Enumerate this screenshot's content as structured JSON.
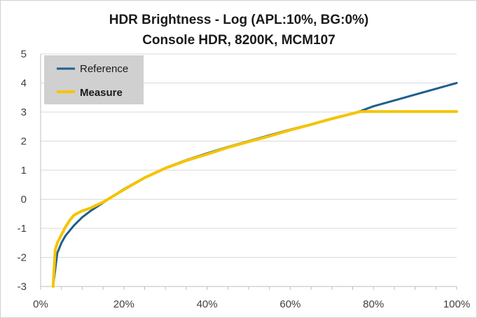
{
  "chart_data": {
    "type": "line",
    "title": [
      "HDR Brightness - Log (APL:10%,  BG:0%)",
      "Console HDR, 8200K, MCM107"
    ],
    "xlabel": "",
    "ylabel": "",
    "xlim": [
      0,
      100
    ],
    "ylim": [
      -3,
      5
    ],
    "x_ticks": [
      0,
      20,
      40,
      60,
      80,
      100
    ],
    "x_tick_labels": [
      "0%",
      "20%",
      "40%",
      "60%",
      "80%",
      "100%"
    ],
    "y_ticks": [
      -3,
      -2,
      -1,
      0,
      1,
      2,
      3,
      4,
      5
    ],
    "y_tick_labels": [
      "-3",
      "-2",
      "-1",
      "0",
      "1",
      "2",
      "3",
      "4",
      "5"
    ],
    "grid": "horizontal",
    "legend": "top-left",
    "series": [
      {
        "name": "Reference",
        "color": "#1f5f8b",
        "x": [
          3,
          4,
          5,
          6,
          8,
          10,
          12,
          15,
          20,
          25,
          30,
          35,
          40,
          45,
          50,
          55,
          60,
          65,
          70,
          75,
          77,
          80,
          85,
          90,
          95,
          100
        ],
        "y": [
          -3.0,
          -1.85,
          -1.5,
          -1.25,
          -0.9,
          -0.62,
          -0.4,
          -0.12,
          0.35,
          0.75,
          1.08,
          1.35,
          1.58,
          1.8,
          2.0,
          2.2,
          2.4,
          2.58,
          2.78,
          2.95,
          3.04,
          3.2,
          3.4,
          3.6,
          3.8,
          4.0
        ]
      },
      {
        "name": "Measure",
        "color": "#f5c400",
        "x": [
          3,
          3.5,
          4,
          5,
          6,
          7,
          8,
          9,
          10,
          12,
          15,
          20,
          25,
          30,
          35,
          40,
          45,
          50,
          55,
          60,
          65,
          70,
          75,
          77,
          80,
          85,
          90,
          95,
          100
        ],
        "y": [
          -3.0,
          -1.75,
          -1.5,
          -1.22,
          -0.95,
          -0.72,
          -0.55,
          -0.47,
          -0.4,
          -0.3,
          -0.1,
          0.33,
          0.74,
          1.07,
          1.33,
          1.55,
          1.78,
          1.98,
          2.17,
          2.38,
          2.57,
          2.77,
          2.95,
          3.02,
          3.02,
          3.02,
          3.02,
          3.02,
          3.02
        ]
      }
    ]
  }
}
